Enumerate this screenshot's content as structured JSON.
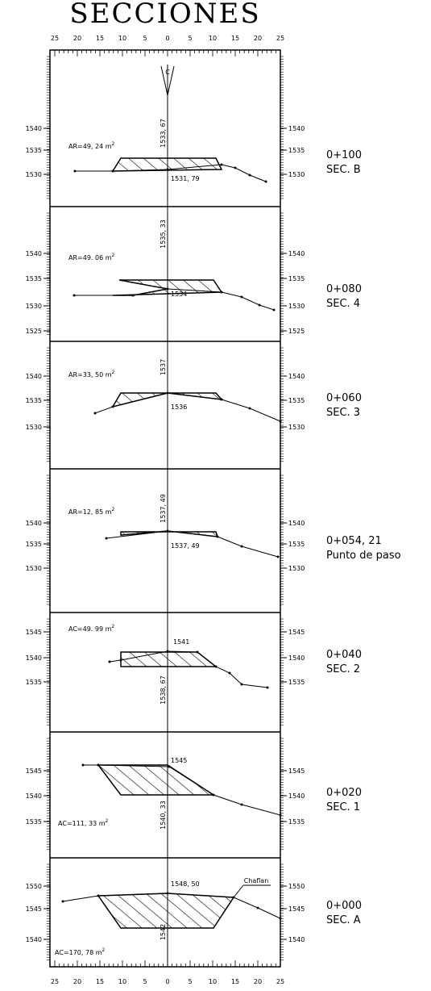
{
  "title": "SECCIONES",
  "top_axis": {
    "labels": [
      "25",
      "20",
      "15",
      "10",
      "5",
      "0",
      "5",
      "10",
      "15",
      "20",
      "25"
    ]
  },
  "bottom_axis": {
    "labels": [
      "25",
      "20",
      "15",
      "10",
      "5",
      "0",
      "5",
      "10",
      "15",
      "20",
      "25"
    ]
  },
  "centerline_mark": "C",
  "chaflan_label": "Chaflan",
  "sections": [
    {
      "area": "AR=49, 24 m",
      "area_exp": "2",
      "elevations": [
        "1540",
        "1535",
        "1530"
      ],
      "axis_label": "1533, 67",
      "point_label": "1531, 79",
      "station": "0+100",
      "name": "SEC. B"
    },
    {
      "area": "AR=49. 06 m",
      "area_exp": "2",
      "elevations": [
        "1540",
        "1535",
        "1530",
        "1525"
      ],
      "axis_label": "1535, 33",
      "point_label": "1534",
      "station": "0+080",
      "name": "SEC. 4"
    },
    {
      "area": "AR=33, 50 m",
      "area_exp": "2",
      "elevations": [
        "1540",
        "1535",
        "1530"
      ],
      "axis_label": "1537",
      "point_label": "1536",
      "station": "0+060",
      "name": "SEC. 3"
    },
    {
      "area": "AR=12, 85 m",
      "area_exp": "2",
      "elevations": [
        "1540",
        "1535",
        "1530"
      ],
      "axis_label": "1537, 49",
      "point_label": "1537, 49",
      "station": "0+054, 21",
      "name": "Punto de paso"
    },
    {
      "area": "AC=49. 99 m",
      "area_exp": "2",
      "elevations": [
        "1545",
        "1540",
        "1535"
      ],
      "axis_label": "1538, 67",
      "point_label": "1541",
      "station": "0+040",
      "name": "SEC. 2"
    },
    {
      "area": "AC=111, 33 m",
      "area_exp": "2",
      "elevations": [
        "1545",
        "1540",
        "1535"
      ],
      "axis_label": "1540, 33",
      "point_label": "1545",
      "station": "0+020",
      "name": "SEC. 1"
    },
    {
      "area": "AC=170, 78 m",
      "area_exp": "2",
      "elevations": [
        "1550",
        "1545",
        "1540"
      ],
      "axis_label": "1542",
      "point_label": "1548, 50",
      "station": "0+000",
      "name": "SEC. A"
    }
  ]
}
